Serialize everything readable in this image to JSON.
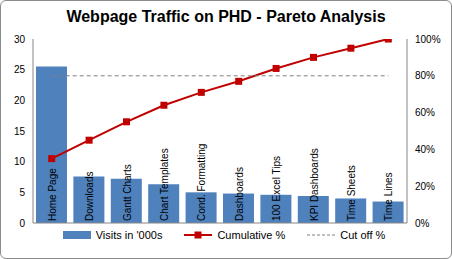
{
  "chart_data": {
    "type": "bar",
    "title": "Webpage Traffic on PHD - Pareto Analysis",
    "categories": [
      "Home Page",
      "Downloads",
      "Gantt Charts",
      "Chart Templates",
      "Cond. Formatting",
      "Dashboards",
      "100 Excel Tips",
      "KPI Dashboards",
      "Time Sheets",
      "Time Lines"
    ],
    "series": [
      {
        "name": "Visits in '000s",
        "type": "bar",
        "color": "#4f81bd",
        "values": [
          25.5,
          7.6,
          7.2,
          6.3,
          5.0,
          4.8,
          4.6,
          4.4,
          4.0,
          3.5
        ]
      },
      {
        "name": "Cumulative %",
        "type": "line",
        "axis": "y2",
        "color": "#c00000",
        "marker": "square",
        "values": [
          35,
          45,
          55,
          64,
          71,
          77,
          84,
          90,
          95,
          100
        ]
      },
      {
        "name": "Cut off %",
        "type": "line",
        "axis": "y2",
        "color": "#808080",
        "line_style": "dashed",
        "values": [
          80,
          80,
          80,
          80,
          80,
          80,
          80,
          80,
          80,
          80
        ]
      }
    ],
    "ylim": [
      0,
      30
    ],
    "yticks": [
      0,
      5,
      10,
      15,
      20,
      25,
      30
    ],
    "y2lim": [
      0,
      100
    ],
    "y2ticks": [
      {
        "value": 0,
        "label": "0%"
      },
      {
        "value": 20,
        "label": "20%"
      },
      {
        "value": 40,
        "label": "40%"
      },
      {
        "value": 60,
        "label": "60%"
      },
      {
        "value": 80,
        "label": "80%"
      },
      {
        "value": 100,
        "label": "100%"
      }
    ],
    "legend": "bottom"
  }
}
